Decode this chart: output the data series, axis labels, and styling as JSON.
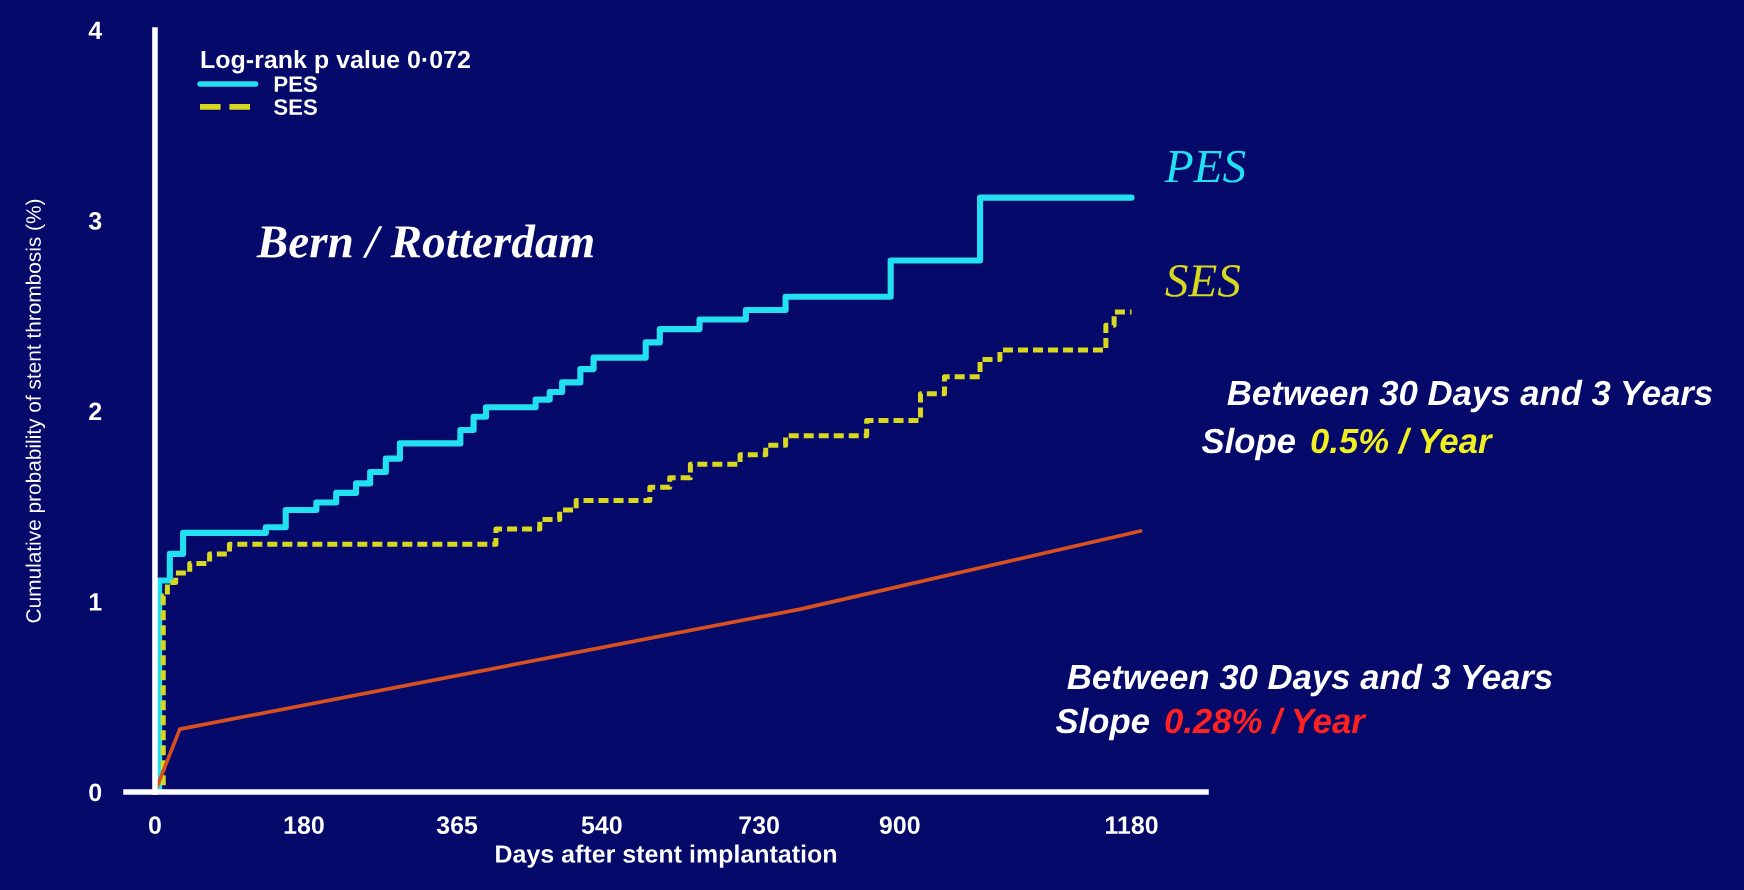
{
  "chart_data": {
    "type": "step",
    "xlabel": "Days after stent implantation",
    "ylabel": "Cumulative probability of stent thrombosis (%)",
    "legend_title": "Log-rank p value 0·072",
    "legend": "top left",
    "grid": false,
    "xlim": [
      -35,
      1270
    ],
    "ylim": [
      0,
      4
    ],
    "xticks": [
      0,
      180,
      365,
      540,
      730,
      900,
      1180
    ],
    "yticks": [
      0,
      1,
      2,
      3,
      4
    ],
    "series": [
      {
        "name": "PES",
        "color": "#22e0f0",
        "line_style": "solid",
        "x": [
          0,
          5,
          18,
          34,
          134,
          158,
          195,
          219,
          243,
          260,
          279,
          296,
          369,
          385,
          400,
          460,
          477,
          492,
          514,
          530,
          593,
          610,
          658,
          714,
          762,
          889,
          997,
          1180
        ],
        "values": [
          0,
          1.11,
          1.25,
          1.36,
          1.39,
          1.48,
          1.52,
          1.57,
          1.62,
          1.68,
          1.75,
          1.83,
          1.9,
          1.97,
          2.02,
          2.06,
          2.1,
          2.15,
          2.22,
          2.28,
          2.36,
          2.43,
          2.48,
          2.53,
          2.6,
          2.79,
          3.12,
          3.12
        ]
      },
      {
        "name": "SES",
        "color": "#d8d820",
        "line_style": "dashed",
        "x": [
          0,
          10,
          15,
          25,
          42,
          66,
          90,
          412,
          465,
          489,
          509,
          598,
          622,
          647,
          707,
          738,
          762,
          860,
          925,
          954,
          997,
          1021,
          1149,
          1159,
          1180
        ],
        "values": [
          0,
          1.03,
          1.1,
          1.15,
          1.2,
          1.25,
          1.3,
          1.38,
          1.43,
          1.48,
          1.53,
          1.6,
          1.65,
          1.72,
          1.77,
          1.82,
          1.87,
          1.95,
          2.09,
          2.18,
          2.27,
          2.32,
          2.45,
          2.52,
          2.52
        ]
      },
      {
        "type": "line",
        "color": "#d8501e",
        "line_style": "solid",
        "x": [
          0,
          30,
          780,
          1191
        ],
        "values": [
          0,
          0.33,
          0.96,
          1.37
        ]
      }
    ],
    "annotations": [
      "Bern / Rotterdam",
      "Between 30 Days and 3 Years",
      "Slope",
      "0.5% / Year",
      "Between 30 Days and 3 Years",
      "Slope",
      "0.28% / Year"
    ]
  }
}
